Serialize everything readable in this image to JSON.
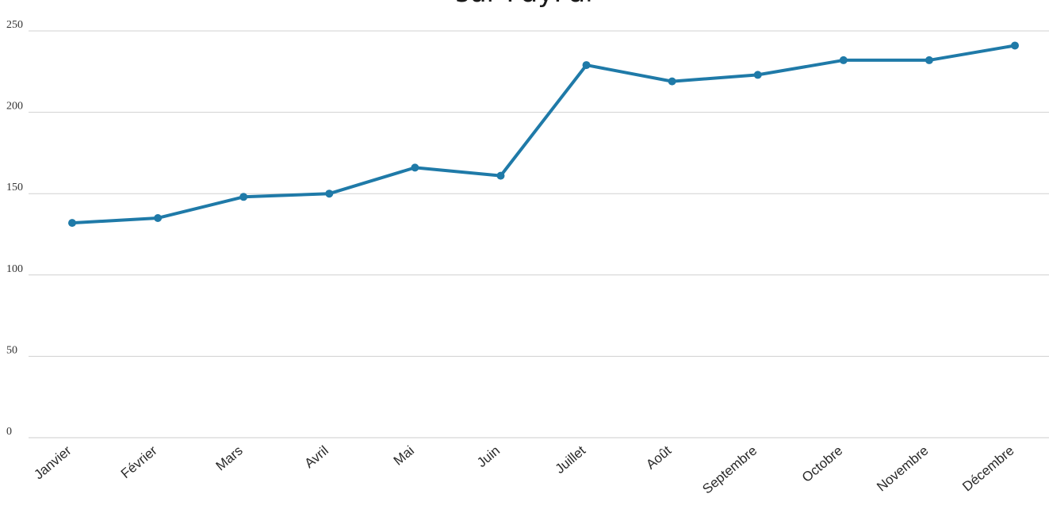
{
  "chart_data": {
    "type": "line",
    "title": "sur PayPal",
    "xlabel": "",
    "ylabel": "",
    "categories": [
      "Janvier",
      "Février",
      "Mars",
      "Avril",
      "Mai",
      "Juin",
      "Juillet",
      "Août",
      "Septembre",
      "Octobre",
      "Novembre",
      "Décembre"
    ],
    "series": [
      {
        "values": [
          132,
          135,
          148,
          150,
          166,
          161,
          229,
          219,
          223,
          232,
          232,
          241
        ],
        "color": "#1f7aa8"
      }
    ],
    "ylim": [
      0,
      250
    ],
    "yticks": [
      0,
      50,
      100,
      150,
      200,
      250
    ],
    "grid": true,
    "legend": "none"
  }
}
